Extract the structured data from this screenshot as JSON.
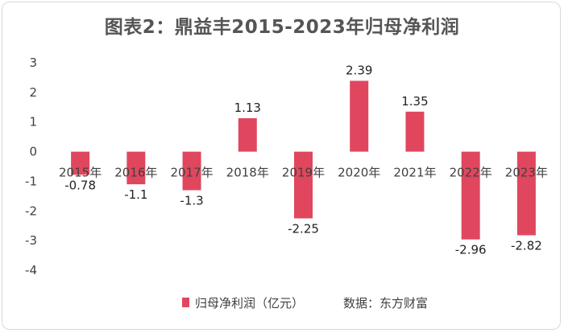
{
  "chart_data": {
    "type": "bar",
    "title": "图表2：鼎益丰2015-2023年归母净利润",
    "categories": [
      "2015年",
      "2016年",
      "2017年",
      "2018年",
      "2019年",
      "2020年",
      "2021年",
      "2022年",
      "2023年"
    ],
    "series": [
      {
        "name": "归母净利润（亿元）",
        "values": [
          -0.78,
          -1.1,
          -1.3,
          1.13,
          -2.25,
          2.39,
          1.35,
          -2.96,
          -2.82
        ]
      }
    ],
    "data_labels": [
      "-0.78",
      "-1.1",
      "-1.3",
      "1.13",
      "-2.25",
      "2.39",
      "1.35",
      "-2.96",
      "-2.82"
    ],
    "y_ticks": [
      "3",
      "2",
      "1",
      "0",
      "-1",
      "-2",
      "-3",
      "-4"
    ],
    "ylim": [
      -4,
      3
    ],
    "xlabel": "",
    "ylabel": "",
    "grid": false,
    "legend_position": "bottom",
    "bar_color": "#e0475f"
  },
  "source_note": "数据：东方财富"
}
